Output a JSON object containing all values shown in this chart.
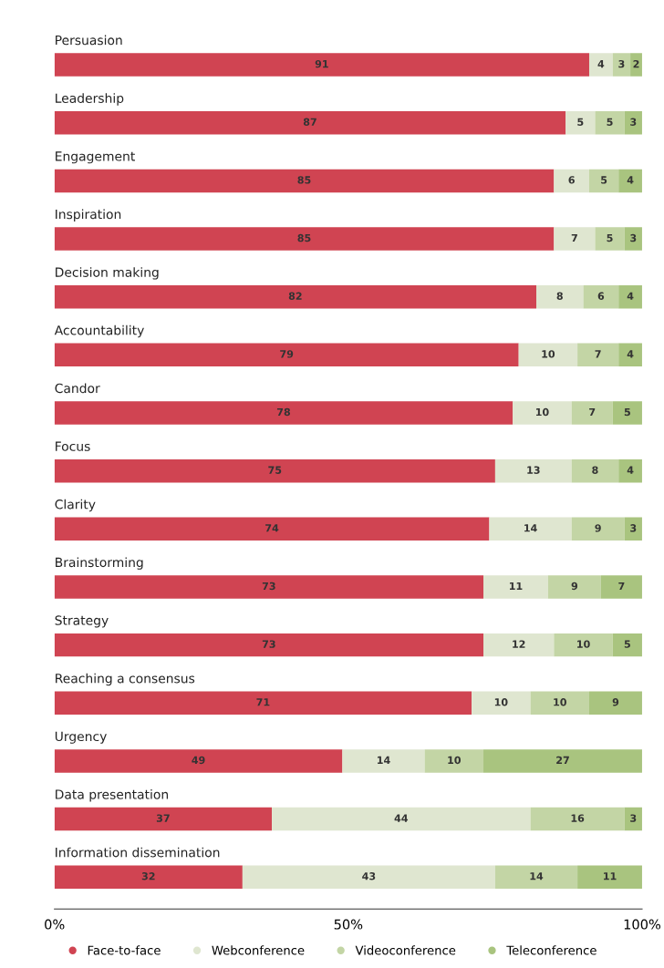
{
  "chart_data": {
    "type": "bar",
    "orientation": "horizontal",
    "stacked": true,
    "categories": [
      "Persuasion",
      "Leadership",
      "Engagement",
      "Inspiration",
      "Decision making",
      "Accountability",
      "Candor",
      "Focus",
      "Clarity",
      "Brainstorming",
      "Strategy",
      "Reaching a consensus",
      "Urgency",
      "Data presentation",
      "Information dissemination"
    ],
    "series": [
      {
        "name": "Face-to-face",
        "color": "#d04452",
        "values": [
          91,
          87,
          85,
          85,
          82,
          79,
          78,
          75,
          74,
          73,
          73,
          71,
          49,
          37,
          32
        ]
      },
      {
        "name": "Webconference",
        "color": "#dfe6d0",
        "values": [
          4,
          5,
          6,
          7,
          8,
          10,
          10,
          13,
          14,
          11,
          12,
          10,
          14,
          44,
          43
        ]
      },
      {
        "name": "Videoconference",
        "color": "#c3d5a5",
        "values": [
          3,
          5,
          5,
          5,
          6,
          7,
          7,
          8,
          9,
          9,
          10,
          10,
          10,
          16,
          14
        ]
      },
      {
        "name": "Teleconference",
        "color": "#a9c47f",
        "values": [
          2,
          3,
          4,
          3,
          4,
          4,
          5,
          4,
          3,
          7,
          5,
          9,
          27,
          3,
          11
        ]
      }
    ],
    "xlim": [
      0,
      100
    ],
    "xticks": [
      {
        "value": 0,
        "label": "0%"
      },
      {
        "value": 50,
        "label": "50%"
      },
      {
        "value": 100,
        "label": "100%"
      }
    ],
    "tick_labels": "x",
    "data_labels": true,
    "grid": false,
    "legend": "bottom"
  }
}
